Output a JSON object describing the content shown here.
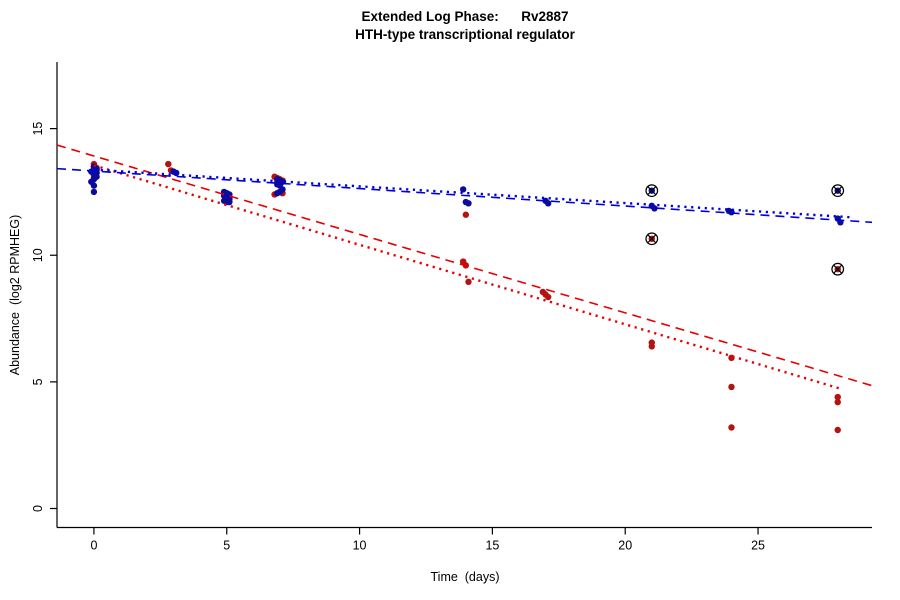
{
  "chart_data": {
    "type": "scatter",
    "title": "Extended Log Phase:      Rv2887",
    "subtitle": "HTH-type transcriptional regulator",
    "xlabel": "Time  (days)",
    "ylabel": "Abundance  (log2 RPMHEG)",
    "xlim": [
      -1.39,
      29.29
    ],
    "ylim": [
      -0.75,
      17.63
    ],
    "x_ticks": [
      0,
      5,
      10,
      15,
      20,
      25
    ],
    "y_ticks": [
      0,
      5,
      10,
      15
    ],
    "grid": false,
    "legend": "none",
    "series": [
      {
        "name": "red-condition",
        "color": "#b51212",
        "points": [
          [
            0,
            13.6
          ],
          [
            0,
            13.5
          ],
          [
            0.1,
            13.45
          ],
          [
            0,
            13.4
          ],
          [
            0.1,
            13.35
          ],
          [
            0,
            13.3
          ],
          [
            0.1,
            13.25
          ],
          [
            0,
            13.15
          ],
          [
            0,
            13.05
          ],
          [
            2.8,
            13.6
          ],
          [
            2.9,
            13.35
          ],
          [
            3.0,
            13.3
          ],
          [
            4.9,
            12.4
          ],
          [
            5.0,
            12.3
          ],
          [
            5.1,
            12.2
          ],
          [
            5.0,
            12.15
          ],
          [
            6.8,
            13.1
          ],
          [
            6.9,
            13.05
          ],
          [
            7.0,
            13.0
          ],
          [
            7.1,
            12.95
          ],
          [
            6.9,
            12.9
          ],
          [
            7.0,
            12.5
          ],
          [
            7.1,
            12.45
          ],
          [
            6.8,
            12.4
          ],
          [
            14.0,
            11.6
          ],
          [
            13.9,
            9.75
          ],
          [
            14.0,
            9.6
          ],
          [
            14.1,
            8.95
          ],
          [
            16.9,
            8.55
          ],
          [
            17.0,
            8.45
          ],
          [
            17.1,
            8.35
          ],
          [
            21.0,
            6.55
          ],
          [
            21.0,
            6.4
          ],
          [
            24.0,
            5.95
          ],
          [
            24.0,
            4.8
          ],
          [
            24.0,
            3.2
          ],
          [
            28.0,
            4.4
          ],
          [
            28.0,
            4.2
          ],
          [
            28.0,
            3.1
          ]
        ]
      },
      {
        "name": "blue-condition",
        "color": "#0b0b9e",
        "points": [
          [
            0,
            13.5
          ],
          [
            0.1,
            13.4
          ],
          [
            0,
            13.35
          ],
          [
            -0.1,
            13.3
          ],
          [
            0.1,
            13.25
          ],
          [
            0,
            13.2
          ],
          [
            0.1,
            13.1
          ],
          [
            0,
            13.0
          ],
          [
            -0.1,
            12.9
          ],
          [
            0,
            12.75
          ],
          [
            0,
            12.5
          ],
          [
            3.0,
            13.3
          ],
          [
            3.1,
            13.25
          ],
          [
            4.9,
            12.5
          ],
          [
            5.0,
            12.45
          ],
          [
            5.1,
            12.4
          ],
          [
            4.9,
            12.35
          ],
          [
            5.0,
            12.3
          ],
          [
            5.1,
            12.25
          ],
          [
            5.0,
            12.2
          ],
          [
            4.9,
            12.15
          ],
          [
            5.1,
            12.1
          ],
          [
            5.0,
            12.1
          ],
          [
            6.9,
            13.0
          ],
          [
            7.0,
            12.95
          ],
          [
            7.1,
            12.9
          ],
          [
            6.9,
            12.8
          ],
          [
            7.0,
            12.75
          ],
          [
            7.1,
            12.6
          ],
          [
            7.0,
            12.5
          ],
          [
            6.9,
            12.45
          ],
          [
            13.9,
            12.6
          ],
          [
            14.0,
            12.1
          ],
          [
            14.1,
            12.05
          ],
          [
            17.0,
            12.15
          ],
          [
            17.1,
            12.05
          ],
          [
            21.0,
            11.95
          ],
          [
            21.1,
            11.85
          ],
          [
            23.9,
            11.75
          ],
          [
            24.0,
            11.7
          ],
          [
            28.0,
            11.45
          ],
          [
            28.1,
            11.3
          ]
        ]
      }
    ],
    "flagged_points": [
      {
        "x": 21.0,
        "y": 12.55,
        "series": "blue-condition",
        "color": "#0b0b9e"
      },
      {
        "x": 28.0,
        "y": 12.55,
        "series": "blue-condition",
        "color": "#0b0b9e"
      },
      {
        "x": 21.0,
        "y": 10.65,
        "series": "red-condition",
        "color": "#b51212"
      },
      {
        "x": 28.0,
        "y": 9.45,
        "series": "red-condition",
        "color": "#b51212"
      }
    ],
    "trend_lines": [
      {
        "name": "red-dashed-fit",
        "color": "#e60000",
        "style": "dashed",
        "x1": -1.39,
        "y1": 14.35,
        "x2": 29.29,
        "y2": 4.85,
        "width": 1.6
      },
      {
        "name": "red-dotted-fit",
        "color": "#e60000",
        "style": "dotted",
        "x1": 0.0,
        "y1": 13.55,
        "x2": 28.2,
        "y2": 4.7,
        "width": 2.4
      },
      {
        "name": "blue-dashed-fit",
        "color": "#0000dd",
        "style": "dashed",
        "x1": -1.39,
        "y1": 13.42,
        "x2": 29.29,
        "y2": 11.3,
        "width": 1.6
      },
      {
        "name": "blue-dotted-fit",
        "color": "#0000dd",
        "style": "dotted",
        "x1": 0.0,
        "y1": 13.38,
        "x2": 28.5,
        "y2": 11.5,
        "width": 2.4
      }
    ]
  }
}
